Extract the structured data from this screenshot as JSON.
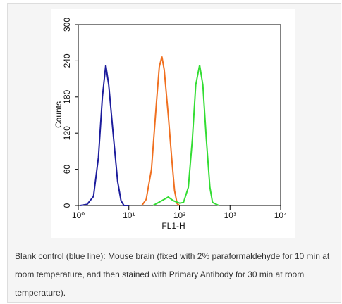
{
  "chart_data": {
    "type": "line",
    "xscale": "log",
    "xlabel": "FL1-H",
    "ylabel": "Counts",
    "xlim": [
      1,
      10000
    ],
    "ylim": [
      0,
      300
    ],
    "xticks": [
      {
        "value": 1,
        "label": "10⁰"
      },
      {
        "value": 10,
        "label": "10¹"
      },
      {
        "value": 100,
        "label": "10²"
      },
      {
        "value": 1000,
        "label": "10³"
      },
      {
        "value": 10000,
        "label": "10⁴"
      }
    ],
    "yticks": [
      0,
      60,
      120,
      180,
      240,
      300
    ],
    "series": [
      {
        "color": "#1c1c9c",
        "x": [
          1.1,
          1.5,
          2,
          2.5,
          3,
          3.5,
          4,
          5,
          6,
          7,
          8,
          10
        ],
        "values": [
          0,
          2,
          15,
          80,
          180,
          233,
          200,
          110,
          40,
          8,
          0,
          0
        ]
      },
      {
        "color": "#f07020",
        "x": [
          18,
          22,
          28,
          35,
          40,
          45,
          50,
          60,
          70,
          80,
          90,
          100
        ],
        "values": [
          0,
          10,
          60,
          170,
          230,
          247,
          225,
          150,
          80,
          25,
          3,
          0
        ]
      },
      {
        "color": "#33dd33",
        "x": [
          30,
          45,
          60,
          75,
          100,
          120,
          150,
          180,
          210,
          250,
          290,
          340,
          400,
          450,
          600
        ],
        "values": [
          0,
          8,
          14,
          8,
          4,
          5,
          30,
          110,
          200,
          233,
          200,
          110,
          30,
          5,
          0
        ]
      }
    ]
  },
  "caption": "Blank control (blue line): Mouse brain (fixed with 2% paraformaldehyde for 10 min at room temperature, and then stained with Primary Antibody for 30 min at room temperature)."
}
